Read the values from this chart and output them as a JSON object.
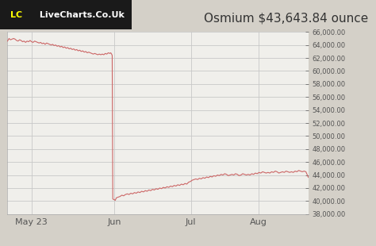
{
  "title": "Osmium $43,643.84 ounce",
  "watermark_lc": "LC",
  "watermark_rest": " LiveCharts.Co.Uk",
  "line_color": "#cc6666",
  "background_color": "#d4d0c8",
  "plot_bg_color": "#f0efeb",
  "ylim": [
    38000,
    66000
  ],
  "yticks": [
    38000,
    40000,
    42000,
    44000,
    46000,
    48000,
    50000,
    52000,
    54000,
    56000,
    58000,
    60000,
    62000,
    64000,
    66000
  ],
  "xtick_labels": [
    "May 23",
    "Jun",
    "Jul",
    "Aug"
  ],
  "xtick_positions": [
    0.08,
    0.355,
    0.61,
    0.835
  ],
  "title_fontsize": 11,
  "watermark_fontsize": 8,
  "grid_color": "#c8c8c8",
  "segments": [
    {
      "points": [
        [
          0.0,
          64600
        ],
        [
          0.005,
          65000
        ],
        [
          0.01,
          64800
        ],
        [
          0.015,
          64900
        ],
        [
          0.02,
          65000
        ],
        [
          0.025,
          64900
        ],
        [
          0.03,
          64700
        ],
        [
          0.035,
          64600
        ],
        [
          0.04,
          64800
        ],
        [
          0.045,
          64700
        ],
        [
          0.05,
          64500
        ],
        [
          0.055,
          64600
        ],
        [
          0.06,
          64400
        ],
        [
          0.065,
          64600
        ],
        [
          0.07,
          64500
        ],
        [
          0.075,
          64700
        ],
        [
          0.08,
          64500
        ],
        [
          0.085,
          64400
        ],
        [
          0.09,
          64600
        ],
        [
          0.095,
          64500
        ],
        [
          0.1,
          64400
        ],
        [
          0.105,
          64300
        ],
        [
          0.11,
          64400
        ],
        [
          0.115,
          64200
        ],
        [
          0.12,
          64300
        ],
        [
          0.125,
          64100
        ],
        [
          0.13,
          64300
        ],
        [
          0.135,
          64200
        ],
        [
          0.14,
          64100
        ],
        [
          0.145,
          64000
        ],
        [
          0.15,
          64100
        ],
        [
          0.155,
          63900
        ],
        [
          0.16,
          64000
        ],
        [
          0.165,
          63800
        ],
        [
          0.17,
          63900
        ],
        [
          0.175,
          63700
        ],
        [
          0.18,
          63800
        ],
        [
          0.185,
          63600
        ],
        [
          0.19,
          63700
        ],
        [
          0.195,
          63500
        ],
        [
          0.2,
          63600
        ],
        [
          0.205,
          63400
        ],
        [
          0.21,
          63500
        ],
        [
          0.215,
          63300
        ],
        [
          0.22,
          63400
        ],
        [
          0.225,
          63200
        ],
        [
          0.23,
          63300
        ],
        [
          0.235,
          63100
        ],
        [
          0.24,
          63200
        ],
        [
          0.245,
          63000
        ],
        [
          0.25,
          63100
        ],
        [
          0.255,
          62900
        ],
        [
          0.26,
          63000
        ],
        [
          0.265,
          62800
        ],
        [
          0.27,
          62900
        ],
        [
          0.275,
          62800
        ],
        [
          0.28,
          62700
        ],
        [
          0.285,
          62600
        ],
        [
          0.29,
          62700
        ],
        [
          0.295,
          62600
        ],
        [
          0.3,
          62500
        ],
        [
          0.305,
          62600
        ],
        [
          0.31,
          62500
        ],
        [
          0.315,
          62600
        ],
        [
          0.32,
          62500
        ],
        [
          0.325,
          62700
        ],
        [
          0.33,
          62600
        ],
        [
          0.335,
          62800
        ],
        [
          0.34,
          62700
        ],
        [
          0.343,
          62800
        ],
        [
          0.346,
          62600
        ],
        [
          0.348,
          62400
        ],
        [
          0.35,
          40300
        ],
        [
          0.355,
          40200
        ],
        [
          0.358,
          40100
        ],
        [
          0.362,
          40500
        ],
        [
          0.368,
          40600
        ],
        [
          0.374,
          40700
        ],
        [
          0.38,
          40900
        ],
        [
          0.386,
          40800
        ],
        [
          0.392,
          41000
        ],
        [
          0.398,
          41100
        ],
        [
          0.404,
          41000
        ],
        [
          0.41,
          41200
        ],
        [
          0.416,
          41100
        ],
        [
          0.422,
          41300
        ],
        [
          0.428,
          41200
        ],
        [
          0.434,
          41400
        ],
        [
          0.44,
          41300
        ],
        [
          0.446,
          41500
        ],
        [
          0.452,
          41400
        ],
        [
          0.458,
          41600
        ],
        [
          0.464,
          41500
        ],
        [
          0.47,
          41700
        ],
        [
          0.476,
          41600
        ],
        [
          0.482,
          41800
        ],
        [
          0.488,
          41700
        ],
        [
          0.494,
          41900
        ],
        [
          0.5,
          41800
        ],
        [
          0.506,
          42000
        ],
        [
          0.512,
          41900
        ],
        [
          0.518,
          42100
        ],
        [
          0.524,
          42000
        ],
        [
          0.53,
          42200
        ],
        [
          0.536,
          42100
        ],
        [
          0.542,
          42300
        ],
        [
          0.548,
          42200
        ],
        [
          0.554,
          42400
        ],
        [
          0.56,
          42300
        ],
        [
          0.566,
          42500
        ],
        [
          0.572,
          42400
        ],
        [
          0.578,
          42600
        ],
        [
          0.584,
          42500
        ],
        [
          0.59,
          42700
        ],
        [
          0.596,
          42600
        ],
        [
          0.602,
          42900
        ],
        [
          0.608,
          43000
        ],
        [
          0.614,
          43200
        ],
        [
          0.62,
          43300
        ],
        [
          0.626,
          43400
        ],
        [
          0.632,
          43300
        ],
        [
          0.638,
          43500
        ],
        [
          0.644,
          43400
        ],
        [
          0.65,
          43600
        ],
        [
          0.656,
          43500
        ],
        [
          0.662,
          43700
        ],
        [
          0.668,
          43600
        ],
        [
          0.674,
          43800
        ],
        [
          0.68,
          43700
        ],
        [
          0.686,
          43900
        ],
        [
          0.692,
          43800
        ],
        [
          0.698,
          44000
        ],
        [
          0.704,
          43900
        ],
        [
          0.71,
          44100
        ],
        [
          0.716,
          44000
        ],
        [
          0.722,
          44200
        ],
        [
          0.728,
          44100
        ],
        [
          0.734,
          43900
        ],
        [
          0.74,
          44000
        ],
        [
          0.746,
          44100
        ],
        [
          0.752,
          44000
        ],
        [
          0.758,
          44200
        ],
        [
          0.764,
          44100
        ],
        [
          0.77,
          43900
        ],
        [
          0.776,
          44000
        ],
        [
          0.782,
          44200
        ],
        [
          0.788,
          44100
        ],
        [
          0.794,
          44000
        ],
        [
          0.8,
          44100
        ],
        [
          0.806,
          44000
        ],
        [
          0.812,
          44200
        ],
        [
          0.818,
          44100
        ],
        [
          0.824,
          44300
        ],
        [
          0.83,
          44200
        ],
        [
          0.836,
          44400
        ],
        [
          0.842,
          44300
        ],
        [
          0.848,
          44500
        ],
        [
          0.854,
          44400
        ],
        [
          0.86,
          44300
        ],
        [
          0.866,
          44400
        ],
        [
          0.872,
          44300
        ],
        [
          0.878,
          44500
        ],
        [
          0.884,
          44400
        ],
        [
          0.89,
          44600
        ],
        [
          0.896,
          44500
        ],
        [
          0.902,
          44300
        ],
        [
          0.908,
          44400
        ],
        [
          0.914,
          44500
        ],
        [
          0.92,
          44400
        ],
        [
          0.926,
          44600
        ],
        [
          0.932,
          44500
        ],
        [
          0.938,
          44400
        ],
        [
          0.944,
          44500
        ],
        [
          0.95,
          44400
        ],
        [
          0.956,
          44600
        ],
        [
          0.962,
          44500
        ],
        [
          0.968,
          44700
        ],
        [
          0.974,
          44600
        ],
        [
          0.98,
          44500
        ],
        [
          0.986,
          44600
        ],
        [
          0.992,
          44500
        ],
        [
          1.0,
          43643
        ]
      ]
    }
  ]
}
